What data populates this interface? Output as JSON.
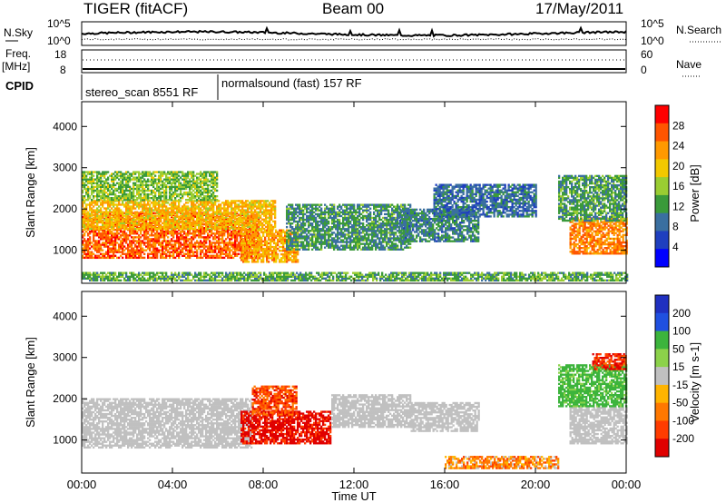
{
  "header": {
    "station": "TIGER (fitACF)",
    "beam": "Beam 00",
    "date": "17/May/2011"
  },
  "top_panels": {
    "nsky_label": "N.Sky",
    "nsearch_label": "N.Search",
    "nsky_ticks": [
      "10^5",
      "10^0"
    ],
    "nsearch_ticks": [
      "10^5",
      "10^0"
    ],
    "freq_label_1": "Freq.",
    "freq_label_2": "[MHz]",
    "freq_ticks": [
      "18",
      "8"
    ],
    "nave_label": "Nave",
    "nave_ticks": [
      "60",
      "0"
    ],
    "cpid_label": "CPID",
    "cpid_segments": [
      {
        "label": "stereo_scan 8551 RF",
        "start_h": 0,
        "end_h": 6
      },
      {
        "label": "normalsound (fast) 157 RF",
        "start_h": 6,
        "end_h": 24
      }
    ]
  },
  "chart_data": [
    {
      "type": "heatmap",
      "panel": "power",
      "ylabel": "Slant Range [km]",
      "xlabel": "",
      "x_range_hours": [
        0,
        24
      ],
      "ylim": [
        200,
        4600
      ],
      "yticks": [
        "1000",
        "2000",
        "3000",
        "4000"
      ],
      "colorbar_label": "Power [dB]",
      "colorbar_ticks": [
        "28",
        "24",
        "20",
        "16",
        "12",
        "8",
        "4"
      ],
      "colorbar_colors": [
        "#ff0000",
        "#ff5500",
        "#ff9900",
        "#f2c800",
        "#9acd32",
        "#3a9a3a",
        "#3a6fa0",
        "#1f3fbf",
        "#0000ff"
      ],
      "regions": [
        {
          "t0": 0.0,
          "t1": 7.8,
          "r0": 800,
          "r1": 1900,
          "level": 26
        },
        {
          "t0": 0.0,
          "t1": 8.5,
          "r0": 1500,
          "r1": 2200,
          "level": 20
        },
        {
          "t0": 0.0,
          "t1": 6.0,
          "r0": 2200,
          "r1": 2900,
          "level": 14
        },
        {
          "t0": 7.0,
          "t1": 9.5,
          "r0": 700,
          "r1": 1500,
          "level": 22
        },
        {
          "t0": 9.0,
          "t1": 14.5,
          "r0": 1000,
          "r1": 2100,
          "level": 10
        },
        {
          "t0": 14.0,
          "t1": 17.5,
          "r0": 1200,
          "r1": 2000,
          "level": 9
        },
        {
          "t0": 15.5,
          "t1": 20.0,
          "r0": 1800,
          "r1": 2600,
          "level": 7
        },
        {
          "t0": 21.5,
          "t1": 24.0,
          "r0": 900,
          "r1": 1800,
          "level": 24
        },
        {
          "t0": 21.0,
          "t1": 24.0,
          "r0": 1700,
          "r1": 2800,
          "level": 11
        },
        {
          "t0": 0.0,
          "t1": 24.0,
          "r0": 250,
          "r1": 450,
          "level": 12
        }
      ]
    },
    {
      "type": "heatmap",
      "panel": "velocity",
      "ylabel": "Slant Range [km]",
      "xlabel": "Time UT",
      "x_range_hours": [
        0,
        24
      ],
      "xticks": [
        "00:00",
        "04:00",
        "08:00",
        "12:00",
        "16:00",
        "20:00",
        "00:00"
      ],
      "ylim": [
        200,
        4600
      ],
      "yticks": [
        "1000",
        "2000",
        "3000",
        "4000"
      ],
      "colorbar_label": "Velocity [m s-1]",
      "colorbar_ticks": [
        "200",
        "100",
        "50",
        "15",
        "-15",
        "-50",
        "-100",
        "-200"
      ],
      "colorbar_colors": [
        "#2030c0",
        "#2050e0",
        "#3cb43c",
        "#8cd24a",
        "#c0c0c0",
        "#ffb400",
        "#ff7800",
        "#ff3c00",
        "#e00000"
      ],
      "regions": [
        {
          "t0": 0.0,
          "t1": 7.5,
          "r0": 800,
          "r1": 2000,
          "vel": 0
        },
        {
          "t0": 7.0,
          "t1": 11.0,
          "r0": 900,
          "r1": 1700,
          "vel": -180
        },
        {
          "t0": 7.5,
          "t1": 9.5,
          "r0": 1600,
          "r1": 2300,
          "vel": -120
        },
        {
          "t0": 11.0,
          "t1": 14.5,
          "r0": 1300,
          "r1": 2100,
          "vel": 0
        },
        {
          "t0": 14.5,
          "t1": 17.5,
          "r0": 1200,
          "r1": 1900,
          "vel": 0
        },
        {
          "t0": 16.0,
          "t1": 21.0,
          "r0": 300,
          "r1": 600,
          "vel": -60
        },
        {
          "t0": 21.5,
          "t1": 24.0,
          "r0": 900,
          "r1": 1800,
          "vel": 0
        },
        {
          "t0": 21.0,
          "t1": 24.0,
          "r0": 1800,
          "r1": 2800,
          "vel": 40
        },
        {
          "t0": 22.5,
          "t1": 24.0,
          "r0": 2700,
          "r1": 3100,
          "vel": -150
        }
      ]
    }
  ]
}
